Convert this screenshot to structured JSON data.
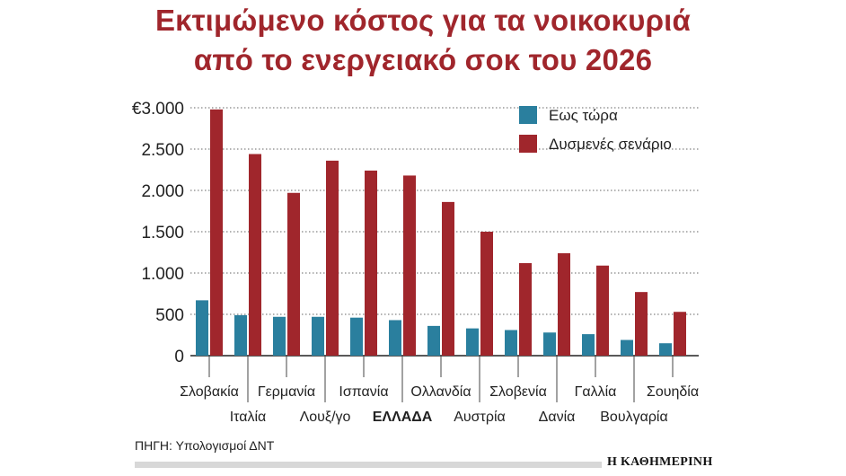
{
  "title_line1": "Εκτιμώμενο κόστος για τα νοικοκυριά",
  "title_line2": "από το ενεργειακό σοκ του 2026",
  "source": "ΠΗΓΗ: Υπολογισμοί ΔΝΤ",
  "brand": "Η ΚΑΘΗΜΕΡΙΝΗ",
  "colors": {
    "title": "#a0262c",
    "series_now": "#2a7f9e",
    "series_bad": "#a0262c",
    "grid": "#666666"
  },
  "chart_data": {
    "type": "bar",
    "grid": true,
    "legend_position": "top-right",
    "ylim": [
      0,
      3000
    ],
    "yticks": [
      0,
      500,
      1000,
      1500,
      2000,
      2500,
      3000
    ],
    "ytick_labels": [
      "0",
      "500",
      "1.000",
      "1.500",
      "2.000",
      "2.500",
      "€3.000"
    ],
    "categories": [
      "Σλοβακία",
      "Ιταλία",
      "Γερμανία",
      "Λουξ/γο",
      "Ισπανία",
      "ΕΛΛΑΔΑ",
      "Ολλανδία",
      "Αυστρία",
      "Σλοβενία",
      "Δανία",
      "Γαλλία",
      "Βουλγαρία",
      "Σουηδία"
    ],
    "highlight_category": "ΕΛΛΑΔΑ",
    "series": [
      {
        "name": "Εως τώρα",
        "values": [
          670,
          490,
          470,
          470,
          460,
          430,
          360,
          330,
          310,
          280,
          260,
          190,
          150
        ]
      },
      {
        "name": "Δυσμενές σενάριο",
        "values": [
          2980,
          2440,
          1970,
          2360,
          2240,
          2180,
          1860,
          1500,
          1120,
          1240,
          1090,
          770,
          530
        ]
      }
    ]
  }
}
